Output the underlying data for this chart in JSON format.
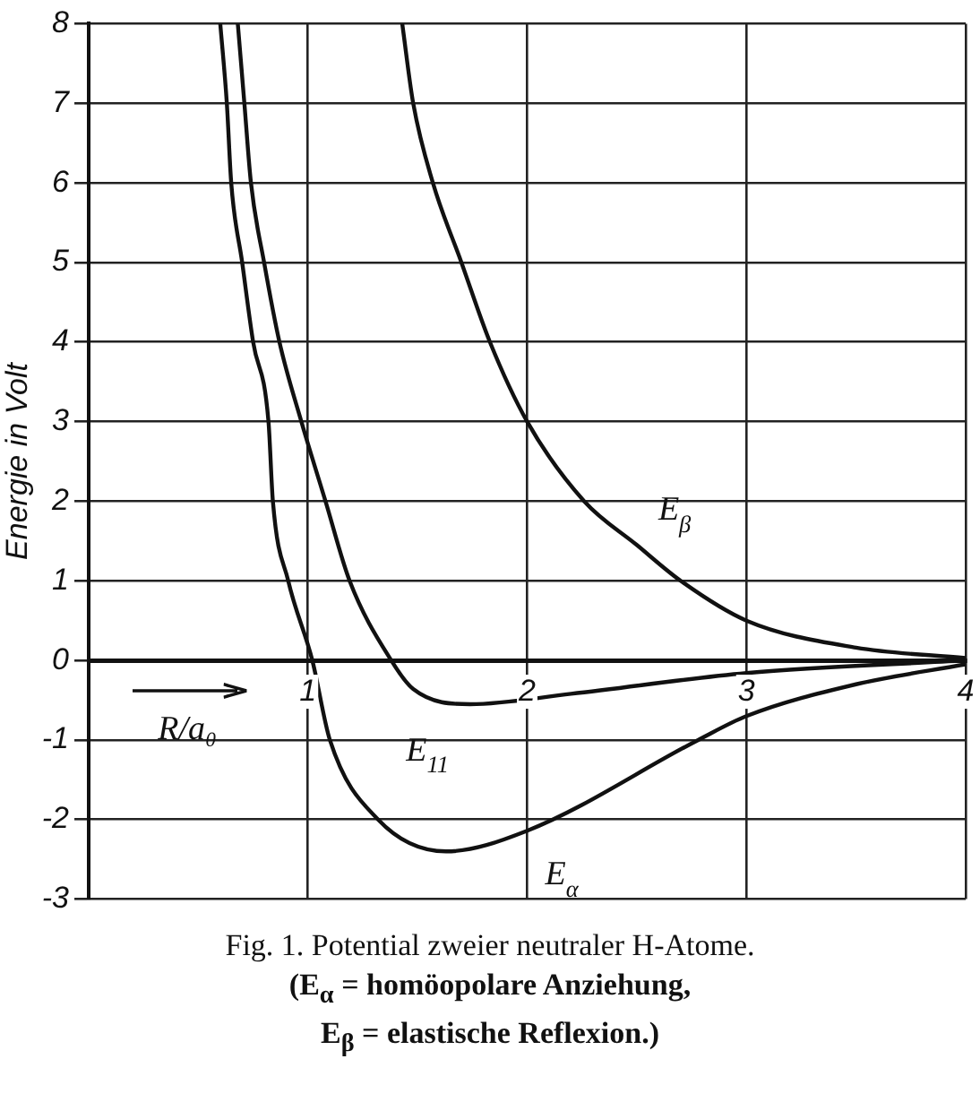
{
  "chart_data": {
    "type": "line",
    "xlabel": "R/a₀",
    "ylabel": "Energie in Volt",
    "xlim": [
      0,
      4
    ],
    "xticks": [
      {
        "value": 0,
        "label": null
      },
      1,
      2,
      3,
      4
    ],
    "ylim": [
      -3,
      8
    ],
    "yticks": [
      -3,
      -2,
      -1,
      0,
      1,
      2,
      3,
      4,
      5,
      6,
      7,
      8
    ],
    "grid": true,
    "legend": false,
    "marker": "none",
    "line_style": "solid",
    "series": [
      {
        "name": "E$_{α}$",
        "color": "#111111",
        "x": [
          0.6,
          0.63,
          0.65,
          0.7,
          0.75,
          0.82,
          0.84,
          0.91,
          1.02,
          1.1,
          1.32,
          1.63,
          2.0,
          2.78,
          3.0,
          3.5,
          4.0
        ],
        "values": [
          8,
          7,
          6,
          5,
          4,
          3,
          2,
          1,
          0,
          -1,
          -2,
          -2.4,
          -2.14,
          -1.0,
          -0.7,
          -0.3,
          -0.05
        ]
      },
      {
        "name": "E$_{11}$",
        "color": "#111111",
        "x": [
          0.68,
          0.71,
          0.74,
          0.8,
          0.87,
          0.97,
          1.08,
          1.19,
          1.38,
          1.48,
          1.74,
          2.2,
          3.0,
          4.0
        ],
        "values": [
          8,
          7,
          6,
          5,
          4,
          3,
          2,
          1,
          0,
          -0.36,
          -0.55,
          -0.42,
          -0.16,
          0
        ]
      },
      {
        "name": "E$_{β}$",
        "color": "#111111",
        "x": [
          1.43,
          1.48,
          1.57,
          1.7,
          1.83,
          2.0,
          2.26,
          2.5,
          2.7,
          3.0,
          3.5,
          4.0
        ],
        "values": [
          8,
          7,
          6,
          5,
          4,
          3,
          2,
          1.45,
          1,
          0.5,
          0.16,
          0.03
        ]
      }
    ],
    "annotations": [
      "Fig. 1. Potential zweier neutraler H-Atome.",
      "(E$_{α}$ = homöopolare Anziehung,",
      "E$_{β}$ = elastische Reflexion.)"
    ]
  }
}
